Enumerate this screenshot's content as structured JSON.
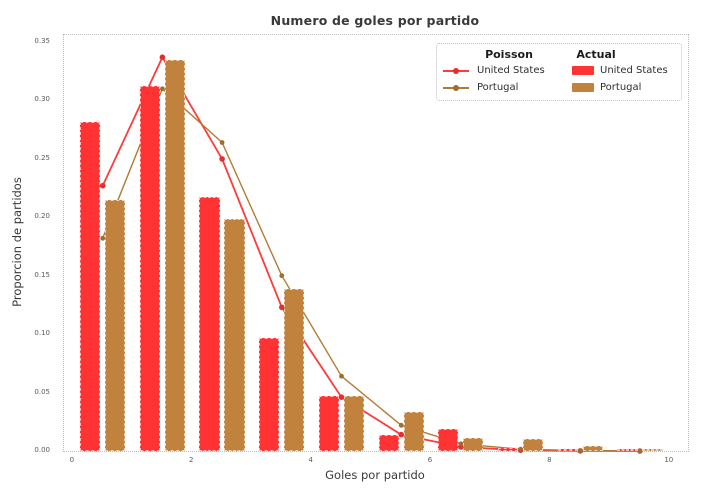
{
  "title": "Numero de goles por partido",
  "axes": {
    "xlabel": "Goles por partido",
    "ylabel": "Proporcion de partidos",
    "x_ticks": [
      {
        "label": "0",
        "value": 0
      },
      {
        "label": "2",
        "value": 2
      },
      {
        "label": "4",
        "value": 4
      },
      {
        "label": "6",
        "value": 6
      },
      {
        "label": "8",
        "value": 8
      },
      {
        "label": "10",
        "value": 10
      }
    ],
    "y_ticks": [
      {
        "label": "0.00",
        "value": 0.0
      },
      {
        "label": "0.05",
        "value": 0.05
      },
      {
        "label": "0.10",
        "value": 0.1
      },
      {
        "label": "0.15",
        "value": 0.15
      },
      {
        "label": "0.20",
        "value": 0.2
      },
      {
        "label": "0.25",
        "value": 0.25
      },
      {
        "label": "0.30",
        "value": 0.3
      },
      {
        "label": "0.35",
        "value": 0.35
      }
    ]
  },
  "legend": {
    "poisson_header": "Poisson",
    "actual_header": "Actual",
    "poisson_items": [
      {
        "label": "United States",
        "color": "#ff3b3b",
        "marker": "#e62e2e"
      },
      {
        "label": "Portugal",
        "color": "#b27b33",
        "marker": "#9e6e2a"
      }
    ],
    "actual_items": [
      {
        "label": "United States",
        "color": "#ff3333"
      },
      {
        "label": "Portugal",
        "color": "#c0823c"
      }
    ]
  },
  "colors": {
    "us_bar": "#ff3333",
    "pt_bar": "#c0823c",
    "us_line": "#ff3b3b",
    "pt_line": "#b27b33",
    "us_marker": "#e62e2e",
    "pt_marker": "#9e6e2a"
  },
  "chart_data": {
    "type": "bar+line (histogram of goals with Poisson overlay)",
    "title": "Numero de goles por partido",
    "xlabel": "Goles por partido",
    "ylabel": "Proporcion de partidos",
    "categories": [
      0,
      1,
      2,
      3,
      4,
      5,
      6,
      7,
      8,
      9
    ],
    "series": [
      {
        "name": "United States (Actual)",
        "type": "bar",
        "color": "#ff3333",
        "values": [
          0.282,
          0.312,
          0.217,
          0.097,
          0.047,
          0.014,
          0.019,
          0.003,
          0.002,
          0.001
        ]
      },
      {
        "name": "Portugal (Actual)",
        "type": "bar",
        "color": "#c0823c",
        "values": [
          0.215,
          0.335,
          0.199,
          0.139,
          0.047,
          0.033,
          0.011,
          0.01,
          0.004,
          0.001
        ]
      },
      {
        "name": "United States (Poisson)",
        "type": "line",
        "color": "#ff3b3b",
        "values": [
          0.227,
          0.337,
          0.25,
          0.123,
          0.046,
          0.014,
          0.0034,
          0.0007,
          0.0001,
          2e-05
        ]
      },
      {
        "name": "Portugal (Poisson)",
        "type": "line",
        "color": "#b27b33",
        "values": [
          0.182,
          0.31,
          0.264,
          0.15,
          0.064,
          0.022,
          0.0062,
          0.0015,
          0.0003,
          0.0001
        ]
      }
    ],
    "x_tick_values": [
      0,
      2,
      4,
      6,
      8,
      10
    ],
    "y_tick_values": [
      0,
      0.05,
      0.1,
      0.15,
      0.2,
      0.25,
      0.3,
      0.35
    ],
    "xlim": [
      -0.15,
      10.3
    ],
    "ylim": [
      0,
      0.356
    ],
    "grid": false,
    "legend_position": "upper right",
    "notes": "bars drawn in pairs between integer x values; line markers at x+0.5"
  }
}
